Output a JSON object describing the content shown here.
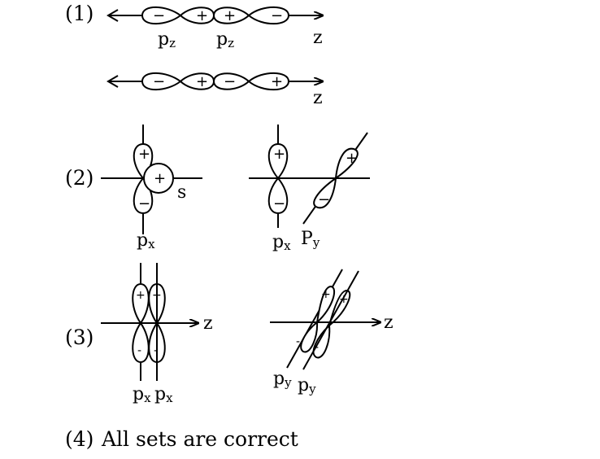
{
  "option_labels": [
    "(1)",
    "(2)",
    "(3)",
    "(4)"
  ],
  "set1": {
    "top": {
      "lobe_signs": [
        "−",
        "+",
        "+",
        "−"
      ],
      "orbital_labels": [
        "pz",
        "pz"
      ],
      "axis_label": "z"
    },
    "bottom": {
      "lobe_signs": [
        "−",
        "+",
        "−",
        "+"
      ],
      "axis_label": "z"
    }
  },
  "set2": {
    "left": {
      "p_signs": [
        "+",
        "−"
      ],
      "s_sign": "+",
      "s_label": "s",
      "orbital_label": "px"
    },
    "right": {
      "px_signs": [
        "+",
        "−"
      ],
      "py_signs": [
        "+",
        "−"
      ],
      "orbital_labels": [
        "px",
        "Py"
      ]
    }
  },
  "set3": {
    "left": {
      "signs": [
        "+",
        "+",
        "-",
        "-"
      ],
      "orbital_labels": [
        "px",
        "px"
      ],
      "axis_label": "z"
    },
    "right": {
      "signs": [
        "+",
        "+",
        "-",
        "-"
      ],
      "orbital_labels": [
        "py",
        "py"
      ],
      "axis_label": "z"
    }
  },
  "set4": {
    "text": "All sets are correct"
  }
}
